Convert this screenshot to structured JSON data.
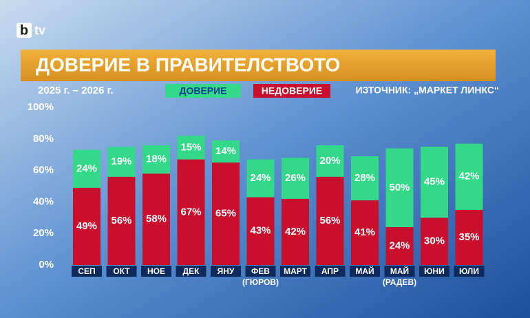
{
  "logo": {
    "mark": "b",
    "text": "tv"
  },
  "chart_data": {
    "type": "stacked-bar",
    "title": "ДОВЕРИЕ В ПРАВИТЕЛСТВОТО",
    "subtitle": "2025 г. – 2026 г.",
    "source": "ИЗТОЧНИК: „МАРКЕТ ЛИНКС“",
    "categories": [
      "СЕП",
      "ОКТ",
      "НОЕ",
      "ДЕК",
      "ЯНУ",
      "ФЕВ",
      "МАРТ",
      "АПР",
      "МАЙ",
      "МАЙ",
      "ЮНИ",
      "ЮЛИ"
    ],
    "category_notes": [
      null,
      null,
      null,
      null,
      null,
      "(ГЮРОВ)",
      null,
      null,
      null,
      "(РАДЕВ)",
      null,
      null
    ],
    "series": [
      {
        "name": "ДОВЕРИЕ",
        "color": "#33d888",
        "values": [
          24,
          19,
          18,
          15,
          14,
          24,
          26,
          20,
          28,
          50,
          45,
          42
        ],
        "value_labels": [
          "24%",
          "19%",
          "18%",
          "15%",
          "14%",
          "24%",
          "26%",
          "20%",
          "28%",
          "50%",
          "45%",
          "42%"
        ]
      },
      {
        "name": "НЕДОВЕРИЕ",
        "color": "#c8102e",
        "values": [
          49,
          56,
          58,
          67,
          65,
          43,
          42,
          56,
          41,
          24,
          30,
          35
        ],
        "value_labels": [
          "49%",
          "56%",
          "58%",
          "67%",
          "65%",
          "43%",
          "42%",
          "56%",
          "41%",
          "24%",
          "30%",
          "35%"
        ]
      }
    ],
    "stack_order": "reverse",
    "ylim": [
      0,
      100
    ],
    "yticks": [
      {
        "value": 0,
        "label": "0%"
      },
      {
        "value": 20,
        "label": "20%"
      },
      {
        "value": 40,
        "label": "40%"
      },
      {
        "value": 60,
        "label": "60%"
      },
      {
        "value": 80,
        "label": "80%"
      },
      {
        "value": 100,
        "label": "100%"
      }
    ],
    "grid": false
  }
}
